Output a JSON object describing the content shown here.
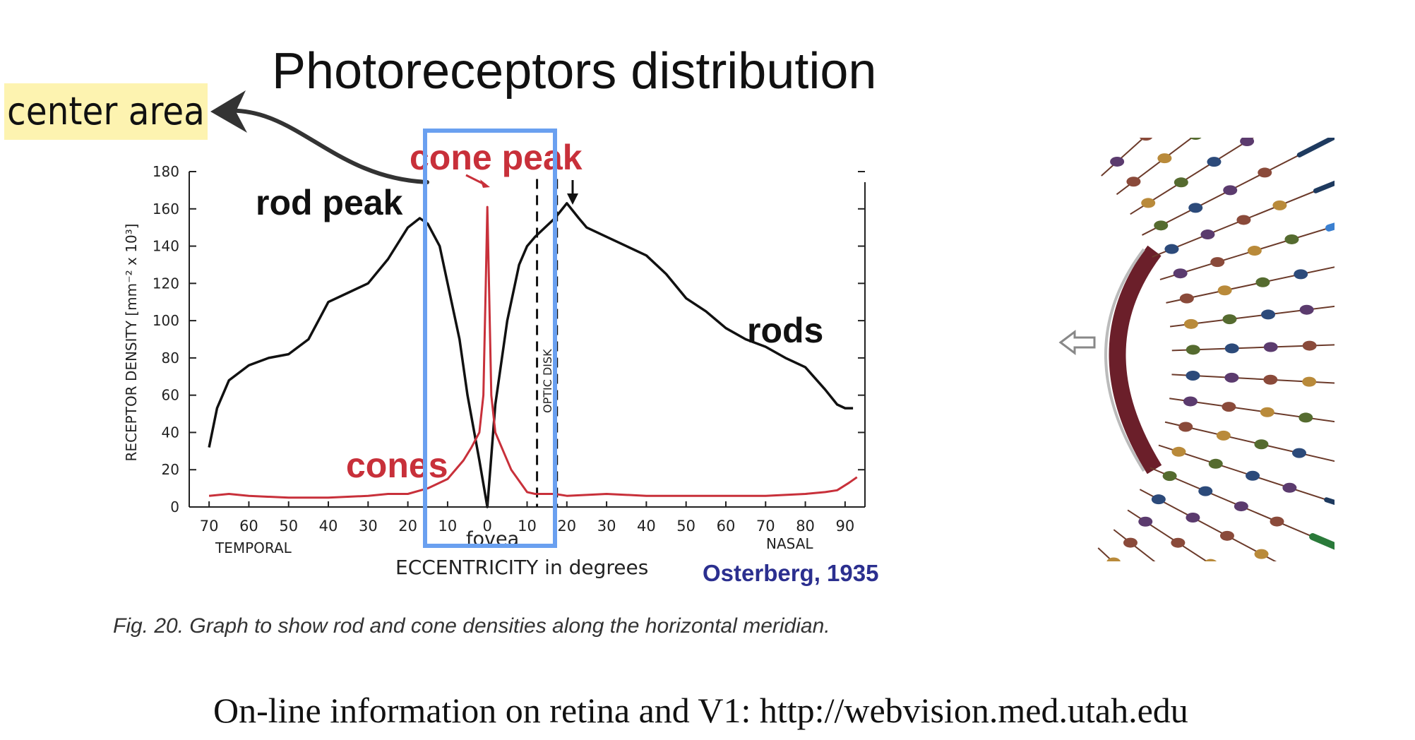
{
  "slide": {
    "title": "Photoreceptors distribution",
    "highlight_label": "center area",
    "caption": "Fig. 20. Graph to show rod and cone densities along the horizontal meridian.",
    "footer": "On-line information on retina and V1: http://webvision.med.utah.edu"
  },
  "colors": {
    "rods": "#111111",
    "cones": "#c8303a",
    "highlight_box": "#6aa0f0",
    "label_bg": "#fdf3b0",
    "citation": "#2b2f8f"
  },
  "chart_data": {
    "type": "line",
    "ylabel": "RECEPTOR DENSITY [mm⁻² x 10³]",
    "xlabel": "ECCENTRICITY in degrees",
    "xlim": [
      -75,
      95
    ],
    "ylim": [
      0,
      180
    ],
    "yticks": [
      0,
      20,
      40,
      60,
      80,
      100,
      120,
      140,
      160,
      180
    ],
    "xticks": [
      -70,
      -60,
      -50,
      -40,
      -30,
      -20,
      -10,
      0,
      10,
      20,
      30,
      40,
      50,
      60,
      70,
      80,
      90
    ],
    "xtick_labels": [
      "70",
      "60",
      "50",
      "40",
      "30",
      "20",
      "10",
      "0",
      "10",
      "20",
      "30",
      "40",
      "50",
      "60",
      "70",
      "80",
      "90"
    ],
    "direction_labels": {
      "left": "TEMPORAL",
      "right": "NASAL",
      "center": "fovea"
    },
    "optic_disc_label": "OPTIC DISK",
    "optic_disc_range": [
      12.5,
      17.5
    ],
    "citation": "Osterberg, 1935",
    "annotations": {
      "rod_peak": "rod peak",
      "cone_peak": "cone peak",
      "rods": "rods",
      "cones": "cones"
    },
    "series": [
      {
        "name": "rods",
        "x": [
          -70,
          -68,
          -65,
          -60,
          -55,
          -50,
          -45,
          -42,
          -40,
          -35,
          -30,
          -25,
          -20,
          -17,
          -15,
          -12,
          -10,
          -7,
          -5,
          -2,
          0,
          2,
          5,
          8,
          10,
          12,
          13,
          17,
          20,
          23,
          25,
          30,
          35,
          40,
          45,
          50,
          55,
          60,
          65,
          70,
          75,
          80,
          85,
          88,
          90,
          92
        ],
        "y": [
          32,
          53,
          68,
          76,
          80,
          82,
          90,
          102,
          110,
          115,
          120,
          133,
          150,
          155,
          152,
          140,
          120,
          90,
          60,
          25,
          0,
          55,
          100,
          130,
          140,
          145,
          147,
          155,
          163,
          155,
          150,
          145,
          140,
          135,
          125,
          112,
          105,
          96,
          90,
          86,
          80,
          75,
          63,
          55,
          53,
          53
        ]
      },
      {
        "name": "cones",
        "x": [
          -70,
          -65,
          -60,
          -50,
          -40,
          -30,
          -25,
          -20,
          -15,
          -10,
          -6,
          -4,
          -2,
          -1,
          -0.4,
          0,
          0.4,
          1,
          2,
          4,
          6,
          10,
          12,
          17,
          20,
          30,
          40,
          50,
          60,
          70,
          80,
          85,
          88,
          91,
          93
        ],
        "y": [
          6,
          7,
          6,
          5,
          5,
          6,
          7,
          7,
          10,
          15,
          25,
          32,
          40,
          60,
          120,
          161,
          120,
          60,
          40,
          30,
          20,
          8,
          7,
          7,
          6,
          7,
          6,
          6,
          6,
          6,
          7,
          8,
          9,
          13,
          16
        ]
      }
    ]
  }
}
